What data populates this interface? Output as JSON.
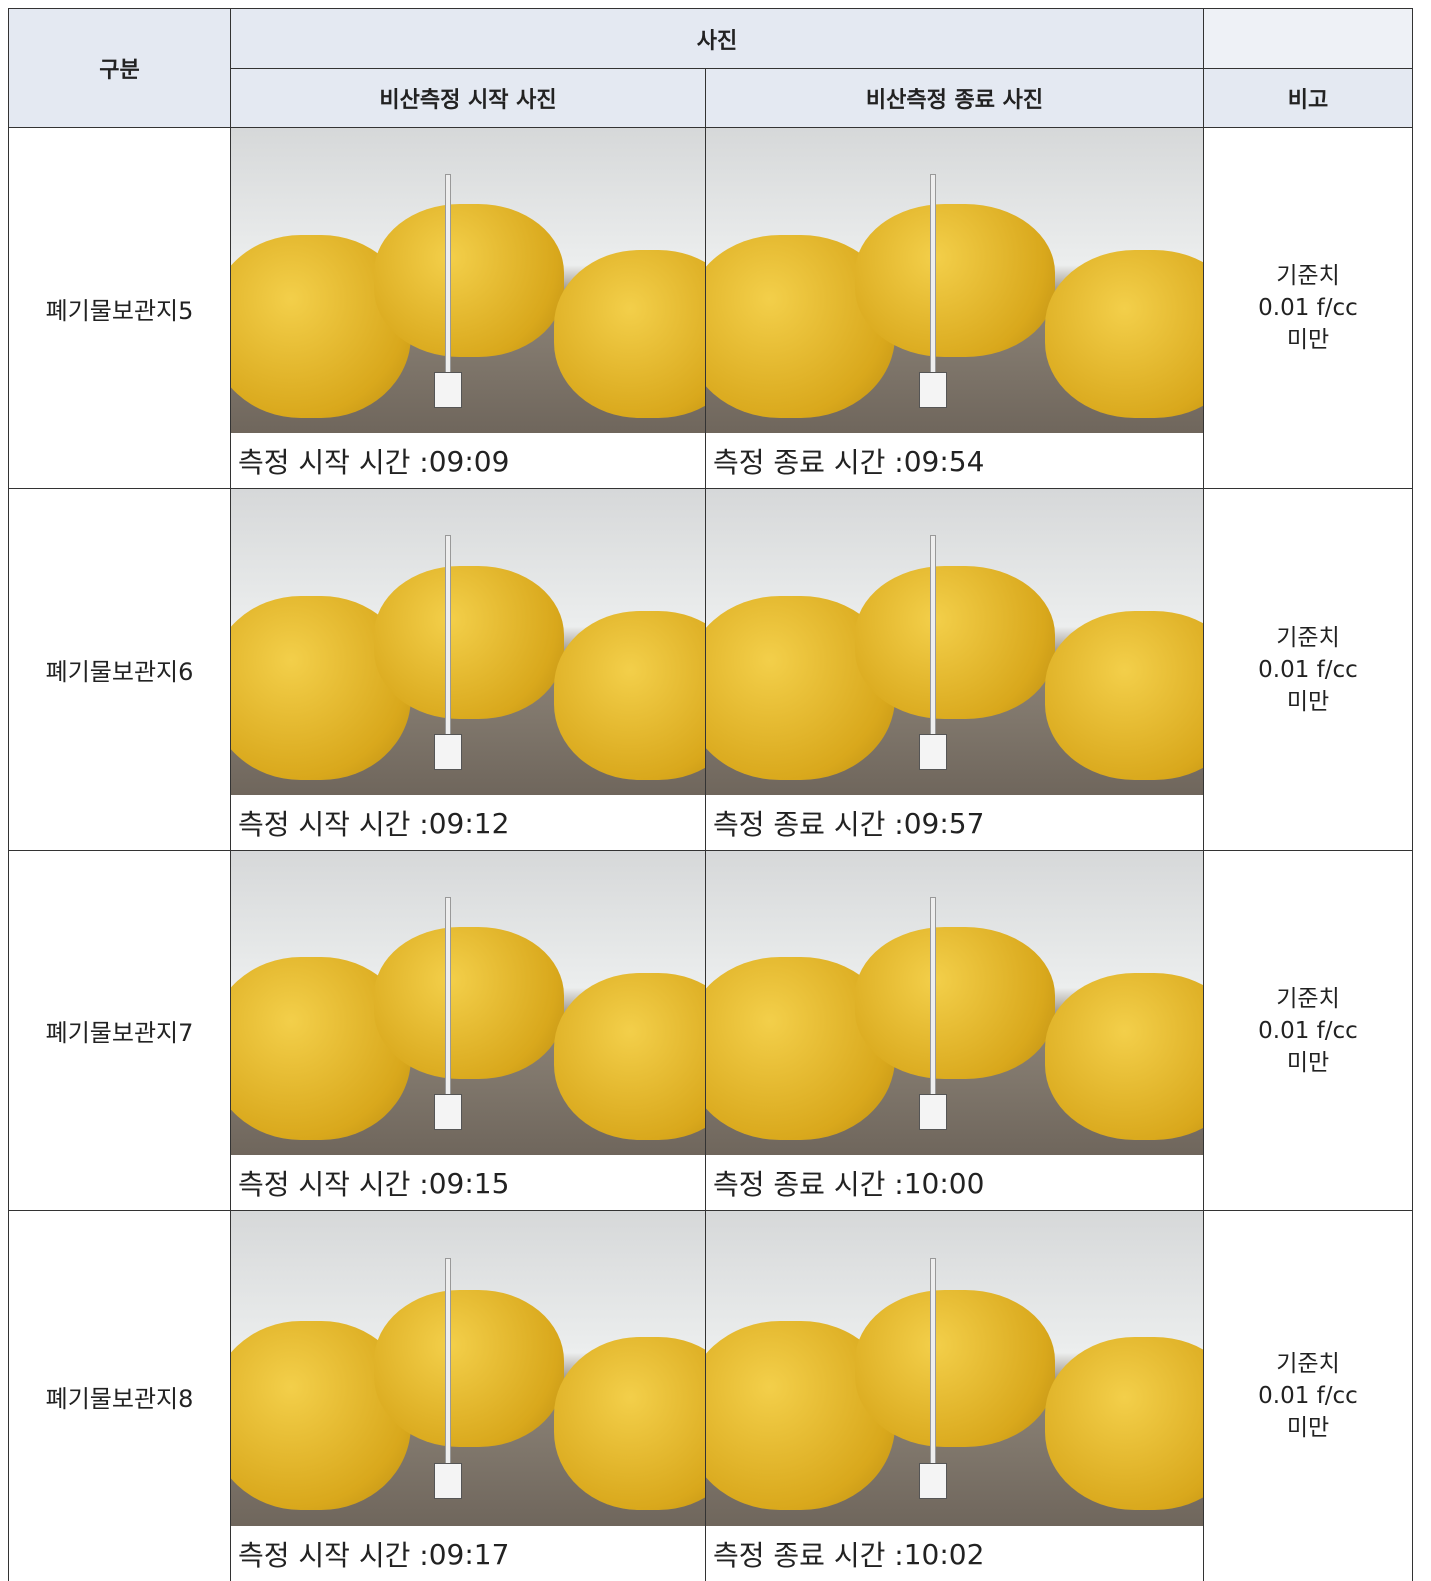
{
  "header": {
    "division": "구분",
    "photo": "사진",
    "start_photo": "비산측정 시작 사진",
    "end_photo": "비산측정 종료 사진",
    "remark": "비고"
  },
  "rows": [
    {
      "label": "폐기물보관지5",
      "start_caption": "측정 시작 시간 :",
      "start_time": "09:09",
      "end_caption": "측정 종료 시간 :",
      "end_time": "09:54",
      "remark": [
        "기준치",
        "0.01 f/cc",
        "미만"
      ]
    },
    {
      "label": "폐기물보관지6",
      "start_caption": "측정 시작 시간 :",
      "start_time": "09:12",
      "end_caption": "측정 종료 시간 :",
      "end_time": "09:57",
      "remark": [
        "기준치",
        "0.01 f/cc",
        "미만"
      ]
    },
    {
      "label": "폐기물보관지7",
      "start_caption": "측정 시작 시간 :",
      "start_time": "09:15",
      "end_caption": "측정 종료 시간 :",
      "end_time": "10:00",
      "remark": [
        "기준치",
        "0.01 f/cc",
        "미만"
      ]
    },
    {
      "label": "폐기물보관지8",
      "start_caption": "측정 시작 시간 :",
      "start_time": "09:17",
      "end_caption": "측정 종료 시간 :",
      "end_time": "10:02",
      "remark": [
        "기준치",
        "0.01 f/cc",
        "미만"
      ]
    }
  ]
}
